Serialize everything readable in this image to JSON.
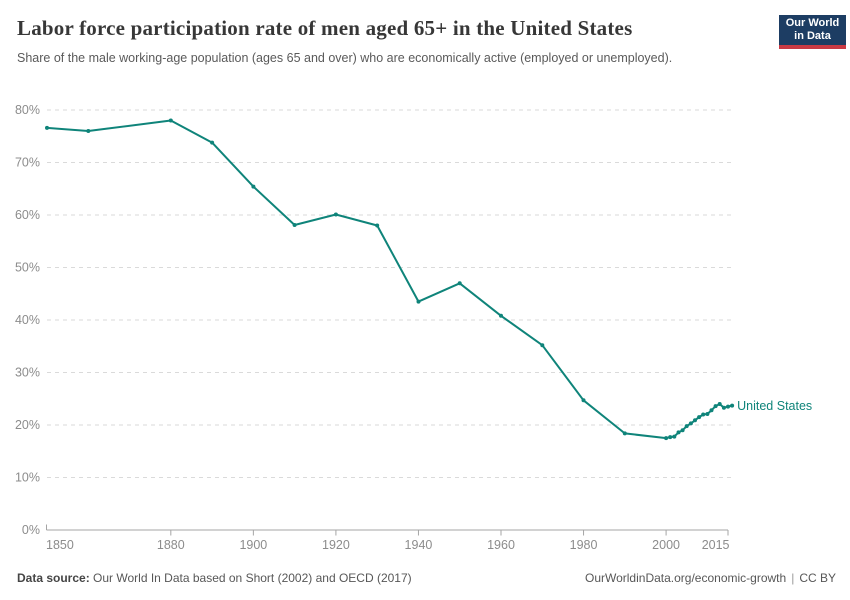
{
  "header": {
    "title": "Labor force participation rate of men aged 65+ in the United States",
    "subtitle": "Share of the male working-age population (ages 65 and over) who are economically active (employed or unemployed).",
    "logo": {
      "line1": "Our World",
      "line2": "in Data"
    }
  },
  "chart_data": {
    "type": "line",
    "title": "Labor force participation rate of men aged 65+ in the United States",
    "subtitle": "Share of the male working-age population (ages 65 and over) who are economically active (employed or unemployed).",
    "xlabel": "",
    "ylabel": "",
    "xlim": [
      1850,
      2016
    ],
    "ylim": [
      0,
      80
    ],
    "x_ticks": [
      1850,
      1880,
      1900,
      1920,
      1940,
      1960,
      1980,
      2000,
      2015
    ],
    "y_ticks": [
      0,
      10,
      20,
      30,
      40,
      50,
      60,
      70,
      80
    ],
    "y_tick_suffix": "%",
    "grid": "horizontal-dashed",
    "legend_position": "end-of-line",
    "series": [
      {
        "name": "United States",
        "color": "#0F847A",
        "x": [
          1850,
          1860,
          1880,
          1890,
          1900,
          1910,
          1920,
          1930,
          1940,
          1950,
          1960,
          1970,
          1980,
          1990,
          2000,
          2001,
          2002,
          2003,
          2004,
          2005,
          2006,
          2007,
          2008,
          2009,
          2010,
          2011,
          2012,
          2013,
          2014,
          2015,
          2016
        ],
        "values": [
          76.6,
          76.0,
          78.0,
          73.8,
          65.4,
          58.1,
          60.1,
          58.0,
          43.5,
          47.0,
          40.8,
          35.2,
          24.7,
          18.4,
          17.5,
          17.7,
          17.8,
          18.6,
          19.0,
          19.8,
          20.3,
          20.9,
          21.5,
          22.0,
          22.1,
          22.8,
          23.6,
          24.0,
          23.3,
          23.5,
          23.7
        ]
      }
    ]
  },
  "footer": {
    "source_label": "Data source:",
    "source_text": " Our World In Data based on Short (2002) and OECD (2017)",
    "link": "OurWorldinData.org/economic-growth",
    "separator": "|",
    "license": "CC BY"
  },
  "colors": {
    "line": "#0F847A",
    "logo_bg": "#1d3d63",
    "logo_stripe": "#c93a44",
    "gridline": "#dadada",
    "axis": "#a5a5a5",
    "tick_label": "#8c8c8c",
    "title_text": "#373737",
    "subtitle_text": "#5a5a5a"
  }
}
